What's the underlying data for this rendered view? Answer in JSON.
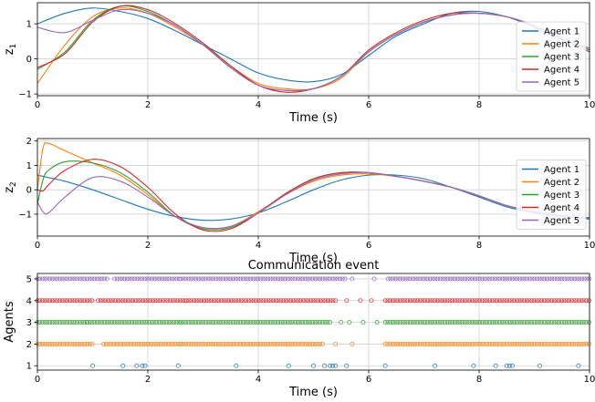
{
  "chart_data": [
    {
      "type": "line",
      "ylabel_base": "z",
      "ylabel_sub": "1",
      "xlabel": "Time (s)",
      "xlim": [
        0,
        10
      ],
      "ylim": [
        -1.05,
        1.6
      ],
      "xticks": [
        0,
        2,
        4,
        6,
        8,
        10
      ],
      "yticks": [
        -1,
        0,
        1
      ],
      "grid": true,
      "legend": "right",
      "x": [
        0,
        0.5,
        1,
        1.5,
        2,
        2.5,
        3,
        3.5,
        4,
        4.5,
        5,
        5.5,
        6,
        6.5,
        7,
        7.5,
        8,
        8.5,
        9,
        9.5,
        10
      ],
      "series": [
        {
          "name": "Agent 1",
          "color": "#1f77b4",
          "values": [
            1.0,
            1.3,
            1.45,
            1.35,
            1.15,
            0.8,
            0.4,
            0.0,
            -0.4,
            -0.6,
            -0.65,
            -0.45,
            0.1,
            0.65,
            1.0,
            1.3,
            1.35,
            1.2,
            0.9,
            0.55,
            0.2
          ]
        },
        {
          "name": "Agent 2",
          "color": "#ff7f0e",
          "values": [
            -0.7,
            0.4,
            1.2,
            1.45,
            1.3,
            0.9,
            0.4,
            -0.2,
            -0.7,
            -0.85,
            -0.85,
            -0.55,
            0.2,
            0.7,
            1.05,
            1.25,
            1.3,
            1.2,
            0.95,
            0.6,
            0.3
          ]
        },
        {
          "name": "Agent 3",
          "color": "#2ca02c",
          "values": [
            -0.3,
            0.2,
            1.1,
            1.5,
            1.35,
            0.95,
            0.4,
            -0.25,
            -0.75,
            -0.9,
            -0.85,
            -0.5,
            0.2,
            0.7,
            1.05,
            1.25,
            1.3,
            1.2,
            0.95,
            0.6,
            0.3
          ]
        },
        {
          "name": "Agent 4",
          "color": "#d62728",
          "values": [
            -0.25,
            0.15,
            1.05,
            1.5,
            1.4,
            1.0,
            0.45,
            -0.2,
            -0.75,
            -0.95,
            -0.85,
            -0.5,
            0.25,
            0.75,
            1.1,
            1.3,
            1.3,
            1.2,
            0.95,
            0.6,
            0.25
          ]
        },
        {
          "name": "Agent 5",
          "color": "#9467bd",
          "values": [
            0.9,
            0.75,
            1.1,
            1.4,
            1.3,
            0.95,
            0.4,
            -0.25,
            -0.75,
            -0.9,
            -0.85,
            -0.5,
            0.2,
            0.7,
            1.05,
            1.25,
            1.3,
            1.2,
            0.95,
            0.6,
            0.3
          ]
        }
      ]
    },
    {
      "type": "line",
      "ylabel_base": "z",
      "ylabel_sub": "2",
      "xlabel": "Time (s)",
      "xlim": [
        0,
        10
      ],
      "ylim": [
        -1.9,
        2.1
      ],
      "xticks": [
        0,
        2,
        4,
        6,
        8,
        10
      ],
      "yticks": [
        -1,
        0,
        1,
        2
      ],
      "grid": true,
      "legend": "right",
      "x": [
        0,
        0.1,
        0.2,
        0.5,
        1,
        1.5,
        2,
        2.5,
        3,
        3.5,
        4,
        4.5,
        5,
        5.5,
        6,
        6.5,
        7,
        7.5,
        8,
        8.5,
        9,
        9.5,
        10
      ],
      "series": [
        {
          "name": "Agent 1",
          "color": "#1f77b4",
          "values": [
            0.6,
            0.55,
            0.5,
            0.35,
            0.0,
            -0.4,
            -0.8,
            -1.1,
            -1.25,
            -1.2,
            -0.95,
            -0.5,
            0.0,
            0.4,
            0.6,
            0.6,
            0.45,
            0.1,
            -0.3,
            -0.7,
            -0.95,
            -1.1,
            -1.2
          ]
        },
        {
          "name": "Agent 2",
          "color": "#ff7f0e",
          "values": [
            0.0,
            1.7,
            1.9,
            1.6,
            1.1,
            0.6,
            -0.2,
            -1.1,
            -1.55,
            -1.5,
            -0.9,
            -0.2,
            0.35,
            0.6,
            0.65,
            0.55,
            0.35,
            0.1,
            -0.25,
            -0.65,
            -0.9,
            -1.05,
            -1.15
          ]
        },
        {
          "name": "Agent 3",
          "color": "#2ca02c",
          "values": [
            -0.6,
            0.4,
            0.8,
            1.15,
            1.1,
            0.7,
            -0.1,
            -1.1,
            -1.6,
            -1.55,
            -0.95,
            -0.15,
            0.45,
            0.7,
            0.7,
            0.55,
            0.35,
            0.1,
            -0.25,
            -0.65,
            -0.9,
            -1.05,
            -1.15
          ]
        },
        {
          "name": "Agent 4",
          "color": "#d62728",
          "values": [
            0.0,
            -0.05,
            0.2,
            0.8,
            1.25,
            0.95,
            0.1,
            -1.0,
            -1.65,
            -1.6,
            -0.95,
            -0.15,
            0.45,
            0.7,
            0.7,
            0.55,
            0.35,
            0.1,
            -0.25,
            -0.65,
            -0.9,
            -1.05,
            -1.15
          ]
        },
        {
          "name": "Agent 5",
          "color": "#9467bd",
          "values": [
            -0.5,
            -0.9,
            -0.95,
            -0.3,
            0.5,
            0.35,
            -0.3,
            -1.1,
            -1.55,
            -1.5,
            -0.95,
            -0.2,
            0.4,
            0.65,
            0.7,
            0.55,
            0.35,
            0.1,
            -0.25,
            -0.65,
            -0.9,
            -1.05,
            -1.15
          ]
        }
      ]
    },
    {
      "type": "scatter",
      "title": "Communication event",
      "xlabel": "Time (s)",
      "ylabel": "Agents",
      "xlim": [
        0,
        10
      ],
      "ylim": [
        0.8,
        5.25
      ],
      "xticks": [
        0,
        2,
        4,
        6,
        8,
        10
      ],
      "yticks": [
        1,
        2,
        3,
        4,
        5
      ],
      "grid": true,
      "marker": "hollow-circle",
      "series": [
        {
          "agent": 1,
          "color": "#1f77b4",
          "dense_ranges": [],
          "events": [
            1.0,
            1.55,
            1.8,
            1.9,
            1.95,
            2.55,
            3.6,
            4.55,
            5.0,
            5.2,
            5.3,
            5.35,
            5.4,
            5.6,
            6.3,
            7.2,
            7.9,
            8.3,
            8.5,
            8.55,
            8.6,
            9.1,
            9.8
          ]
        },
        {
          "agent": 2,
          "color": "#ff7f0e",
          "dense_ranges": [
            [
              0.0,
              1.0
            ],
            [
              1.2,
              2.6
            ],
            [
              2.6,
              5.2
            ],
            [
              6.3,
              10.0
            ]
          ],
          "events": [
            5.4,
            5.7
          ]
        },
        {
          "agent": 3,
          "color": "#2ca02c",
          "dense_ranges": [
            [
              0.0,
              0.9
            ],
            [
              0.9,
              2.6
            ],
            [
              2.6,
              5.3
            ],
            [
              6.3,
              10.0
            ]
          ],
          "events": [
            5.5,
            5.65,
            5.9,
            6.15
          ]
        },
        {
          "agent": 4,
          "color": "#d62728",
          "dense_ranges": [
            [
              0.0,
              1.0
            ],
            [
              1.1,
              2.7
            ],
            [
              2.7,
              5.4
            ],
            [
              6.3,
              10.0
            ]
          ],
          "events": [
            5.6,
            5.85,
            6.05
          ]
        },
        {
          "agent": 5,
          "color": "#9467bd",
          "dense_ranges": [
            [
              0.0,
              1.3
            ],
            [
              1.4,
              2.6
            ],
            [
              2.6,
              5.6
            ],
            [
              6.35,
              10.0
            ]
          ],
          "events": [
            5.7,
            6.1
          ]
        }
      ]
    }
  ]
}
